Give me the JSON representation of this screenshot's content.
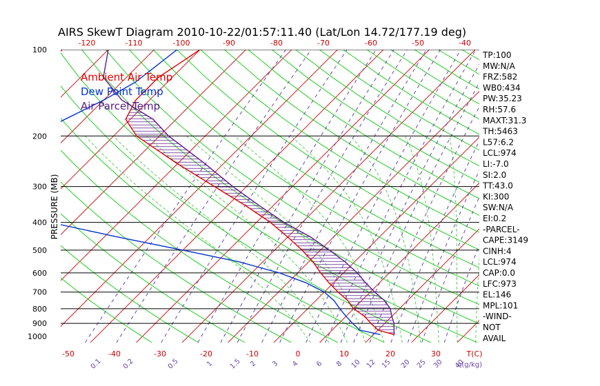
{
  "colors": {
    "temp": "#dd0000",
    "dew": "#0033cc",
    "parcel": "#5a1a8c",
    "isotherm": "#cc2222",
    "dry_adiabat": "#22cc22",
    "moist_adiabat": "#55cc55",
    "mixing": "#6644aa",
    "axis_red": "#cc0000"
  },
  "chart_data": {
    "type": "line",
    "title": "AIRS SkewT Diagram 2010-10-22/01:57:11.40 (Lat/Lon 14.72/177.19 deg)",
    "ylabel": "PRESSURE (MB)",
    "xlabel": "T(C)",
    "mixing_label": "q(g/kg)",
    "pressure_ticks": [
      "100",
      "200",
      "300",
      "400",
      "500",
      "600",
      "700",
      "800",
      "900",
      "1000"
    ],
    "pressure_levels": [
      100,
      200,
      300,
      400,
      500,
      600,
      700,
      800,
      900
    ],
    "bottom_temp_ticks": [
      "-50",
      "-40",
      "-30",
      "-20",
      "-10",
      "0",
      "10",
      "20",
      "30"
    ],
    "top_temp_ticks": [
      "-120",
      "-110",
      "-100",
      "-90",
      "-80",
      "-70",
      "-60",
      "-50",
      "-40"
    ],
    "mixing_ticks": [
      "0.1",
      "0.2",
      "0.5",
      "1",
      "1.5",
      "2",
      "3",
      "4",
      "6",
      "8",
      "10",
      "12",
      "15",
      "20",
      "25",
      "30",
      "40"
    ],
    "legend": [
      {
        "label": "Ambient Air Temp",
        "color": "#dd0000"
      },
      {
        "label": "Dew Point Temp",
        "color": "#0033cc"
      },
      {
        "label": "Air Parcel Temp",
        "color": "#5a1a8c"
      }
    ],
    "series": [
      {
        "name": "Ambient Air Temp",
        "points": [
          [
            100,
            -80
          ],
          [
            125,
            -83
          ],
          [
            150,
            -83
          ],
          [
            175,
            -81
          ],
          [
            200,
            -75
          ],
          [
            250,
            -60
          ],
          [
            300,
            -47
          ],
          [
            350,
            -36
          ],
          [
            400,
            -27
          ],
          [
            450,
            -20
          ],
          [
            500,
            -14
          ],
          [
            550,
            -9
          ],
          [
            600,
            -5
          ],
          [
            650,
            -1
          ],
          [
            700,
            3
          ],
          [
            750,
            7
          ],
          [
            800,
            10
          ],
          [
            850,
            14
          ],
          [
            900,
            17
          ],
          [
            950,
            20
          ],
          [
            985,
            24.5
          ]
        ]
      },
      {
        "name": "Dew Point Temp",
        "points": [
          [
            100,
            -85
          ],
          [
            130,
            -87
          ],
          [
            150,
            -90
          ],
          [
            180,
            -95
          ],
          [
            200,
            -99
          ],
          [
            250,
            -109
          ],
          [
            300,
            -110
          ],
          [
            350,
            -95
          ],
          [
            400,
            -75
          ],
          [
            450,
            -57
          ],
          [
            500,
            -40
          ],
          [
            550,
            -25
          ],
          [
            600,
            -14
          ],
          [
            650,
            -6
          ],
          [
            700,
            0
          ],
          [
            750,
            4
          ],
          [
            800,
            7
          ],
          [
            850,
            10
          ],
          [
            900,
            13
          ],
          [
            950,
            16
          ],
          [
            985,
            21.5
          ]
        ]
      },
      {
        "name": "Air Parcel Temp",
        "points": [
          [
            100,
            -100
          ],
          [
            125,
            -95
          ],
          [
            150,
            -86
          ],
          [
            175,
            -75
          ],
          [
            200,
            -68
          ],
          [
            250,
            -54
          ],
          [
            300,
            -43
          ],
          [
            350,
            -33
          ],
          [
            400,
            -24
          ],
          [
            450,
            -15
          ],
          [
            500,
            -8
          ],
          [
            550,
            -2
          ],
          [
            600,
            3
          ],
          [
            650,
            7
          ],
          [
            700,
            11
          ],
          [
            750,
            15
          ],
          [
            800,
            18
          ],
          [
            850,
            20
          ],
          [
            900,
            22
          ],
          [
            950,
            23.5
          ],
          [
            985,
            24.5
          ]
        ]
      }
    ],
    "indices": [
      "TP:100",
      "MW:N/A",
      "FRZ:582",
      "WB0:434",
      "PW:35.23",
      "RH:57.6",
      "MAXT:31.3",
      "TH:5463",
      "L57:6.2",
      "LCL:974",
      "LI:-7.0",
      "SI:2.0",
      "TT:43.0",
      "KI:300",
      "SW:N/A",
      "EI:0.2",
      "-PARCEL-",
      "CAPE:3149",
      "CINH:4",
      "LCL:974",
      "CAP:0.0",
      "LFC:973",
      "EL:146",
      "MPL:101",
      "-WIND-",
      "NOT",
      "AVAIL"
    ]
  }
}
